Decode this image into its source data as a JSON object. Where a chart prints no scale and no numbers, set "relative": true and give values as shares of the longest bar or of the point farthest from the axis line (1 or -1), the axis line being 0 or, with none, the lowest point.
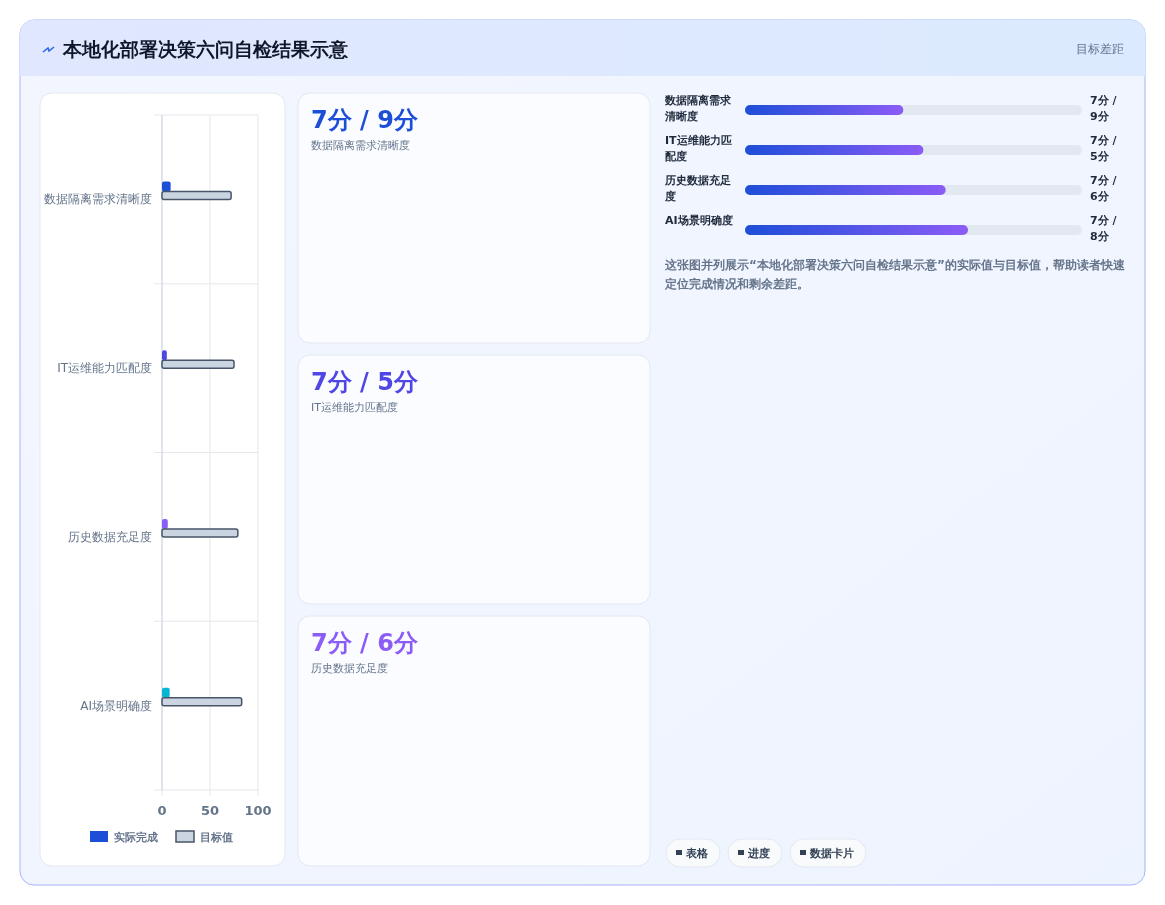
{
  "chart_data": [
    {
      "type": "bar",
      "orientation": "horizontal",
      "title": "本地化部署决策六问自检结果示意",
      "annotations": [
        "目标差距"
      ],
      "categories": [
        "数据隔离需求清晰度",
        "IT运维能力匹配度",
        "历史数据充足度",
        "AI场景明确度"
      ],
      "series": [
        {
          "name": "实际完成",
          "colors": [
            "#1d4ed8",
            "#4f46e5",
            "#8b5cf6",
            "#06b6d4"
          ],
          "values": [
            9,
            5,
            6,
            8
          ]
        },
        {
          "name": "目标值",
          "color": "#cbd5e1",
          "values": [
            72,
            75,
            79,
            83
          ]
        }
      ],
      "xlim": [
        0,
        100
      ],
      "xticks": [
        0,
        50,
        100
      ],
      "grid": true,
      "legend": "bottom"
    },
    {
      "type": "other",
      "colors": [
        "#1d4ed8",
        "#4f46e5",
        "#8b5cf6"
      ],
      "annotations": [
        "7分 / 9分",
        "数据隔离需求清晰度",
        "7分 / 5分",
        "IT运维能力匹配度",
        "7分 / 6分",
        "历史数据充足度"
      ]
    },
    {
      "type": "bar",
      "orientation": "horizontal",
      "relative": true,
      "categories": [
        "数据隔离需求清晰度",
        "IT运维能力匹配度",
        "历史数据充足度",
        "AI场景明确度"
      ],
      "values": [
        0.71,
        0.8,
        0.9,
        1.0
      ],
      "color": "#8b5cf6",
      "annotations": [
        "7分 / 9分",
        "7分 / 5分",
        "7分 / 6分",
        "7分 / 8分",
        "这张图并列展示“本地化部署决策六问自检结果示意”的实际值与目标值，帮助读者快速定位完成情况和剩余差距。",
        "表格",
        "进度",
        "数据卡片"
      ]
    }
  ]
}
